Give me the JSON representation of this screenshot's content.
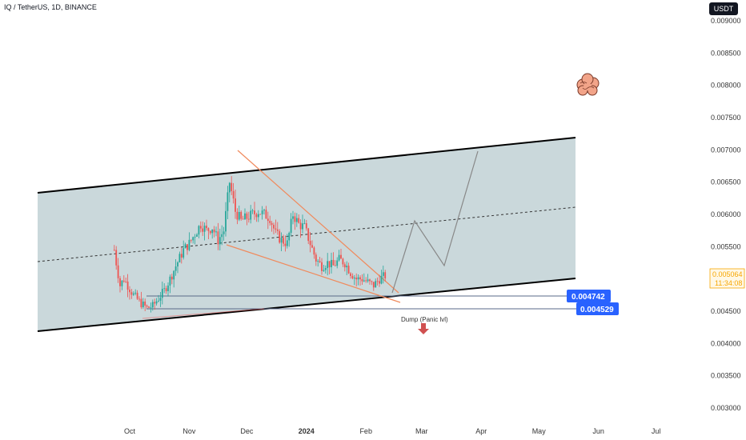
{
  "header": {
    "title": "IQ / TetherUS, 1D, BINANCE",
    "unit": "USDT"
  },
  "chart_data": {
    "type": "candlestick",
    "y_ticks": [
      "0.009000",
      "0.008500",
      "0.008000",
      "0.007500",
      "0.007000",
      "0.006500",
      "0.006000",
      "0.005500",
      "0.005000",
      "0.004500",
      "0.004000",
      "0.003500",
      "0.003000"
    ],
    "ylim": [
      0.00272,
      0.00915
    ],
    "x_ticks": [
      {
        "label": "Oct",
        "day": 0
      },
      {
        "label": "Nov",
        "day": 31
      },
      {
        "label": "Dec",
        "day": 61
      },
      {
        "label": "2024",
        "day": 92,
        "bold": true
      },
      {
        "label": "Feb",
        "day": 123
      },
      {
        "label": "Mar",
        "day": 152
      },
      {
        "label": "Apr",
        "day": 183
      },
      {
        "label": "May",
        "day": 213
      },
      {
        "label": "Jun",
        "day": 244
      },
      {
        "label": "Jul",
        "day": 274
      }
    ],
    "current_price": "0.005064",
    "countdown": "11:34:08",
    "levels": [
      {
        "label": "0.004742",
        "value": 0.004742
      },
      {
        "label": "0.004529",
        "value": 0.004529
      }
    ],
    "annotation": "Dump (Panic lvl)",
    "colors": {
      "up": "#26a69a",
      "down": "#ef5350",
      "channel": "#b8cbcf",
      "wedge": "#f08a5d",
      "level_tag": "#2962ff"
    }
  }
}
